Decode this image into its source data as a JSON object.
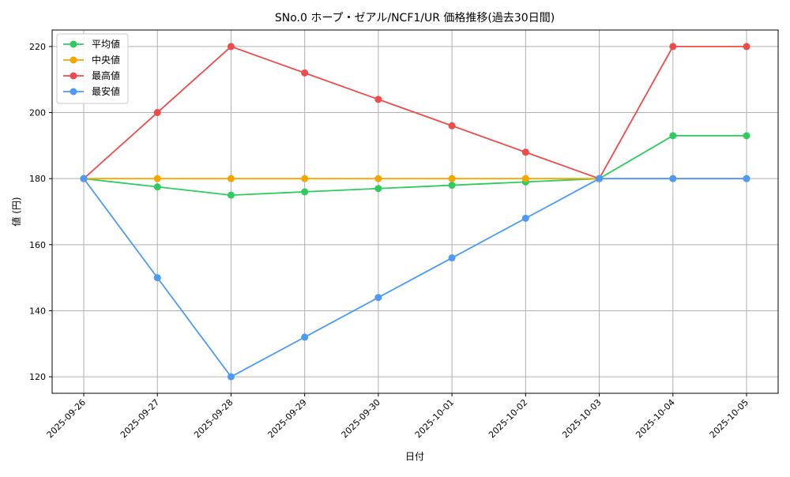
{
  "chart_data": {
    "type": "line",
    "title": "SNo.0 ホープ・ゼアル/NCF1/UR 価格推移(過去30日間)",
    "xlabel": "日付",
    "ylabel": "値 (円)",
    "categories": [
      "2025-09-26",
      "2025-09-27",
      "2025-09-28",
      "2025-09-29",
      "2025-09-30",
      "2025-10-01",
      "2025-10-02",
      "2025-10-03",
      "2025-10-04",
      "2025-10-05"
    ],
    "yticks": [
      120,
      140,
      160,
      180,
      200,
      220
    ],
    "ylim": [
      115,
      225
    ],
    "grid": true,
    "legend_position": "upper-left",
    "series": [
      {
        "name": "平均値",
        "color": "#2ecc5f",
        "values": [
          180,
          177.5,
          175,
          176,
          177,
          178,
          179,
          180,
          193,
          193
        ]
      },
      {
        "name": "中央値",
        "color": "#f5a500",
        "values": [
          180,
          180,
          180,
          180,
          180,
          180,
          180,
          180,
          180,
          180
        ]
      },
      {
        "name": "最高値",
        "color": "#ef4b4b",
        "values": [
          180,
          200,
          220,
          212,
          204,
          196,
          188,
          180,
          220,
          220
        ]
      },
      {
        "name": "最安値",
        "color": "#4d9af5",
        "values": [
          180,
          150,
          120,
          132,
          144,
          156,
          168,
          180,
          180,
          180
        ]
      }
    ]
  }
}
